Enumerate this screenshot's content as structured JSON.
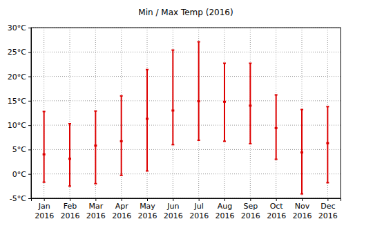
{
  "chart_data": {
    "type": "range",
    "title": "Min / Max Temp (2016)",
    "categories": [
      "Jan 2016",
      "Feb 2016",
      "Mar 2016",
      "Apr 2016",
      "May 2016",
      "Jun 2016",
      "Jul 2016",
      "Aug 2016",
      "Sep 2016",
      "Oct 2016",
      "Nov 2016",
      "Dec 2016"
    ],
    "values": [
      4.0,
      3.1,
      5.8,
      6.7,
      11.3,
      13.0,
      14.9,
      14.8,
      14.0,
      9.4,
      4.4,
      6.3
    ],
    "min": [
      -1.7,
      -2.5,
      -2.0,
      -0.3,
      0.6,
      6.0,
      6.9,
      6.7,
      6.2,
      3.0,
      -4.1,
      -1.8
    ],
    "max": [
      12.8,
      10.3,
      12.9,
      16.0,
      21.4,
      25.4,
      27.1,
      22.7,
      22.7,
      16.2,
      13.2,
      13.8
    ],
    "color": "#dd0000",
    "ylim": [
      -5,
      30
    ],
    "yticks": [
      {
        "value": -5,
        "label": "-5°C"
      },
      {
        "value": 0,
        "label": "0°C"
      },
      {
        "value": 5,
        "label": "5°C"
      },
      {
        "value": 10,
        "label": "10°C"
      },
      {
        "value": 15,
        "label": "15°C"
      },
      {
        "value": 20,
        "label": "20°C"
      },
      {
        "value": 25,
        "label": "25°C"
      },
      {
        "value": 30,
        "label": "30°C"
      }
    ],
    "grid": true
  }
}
